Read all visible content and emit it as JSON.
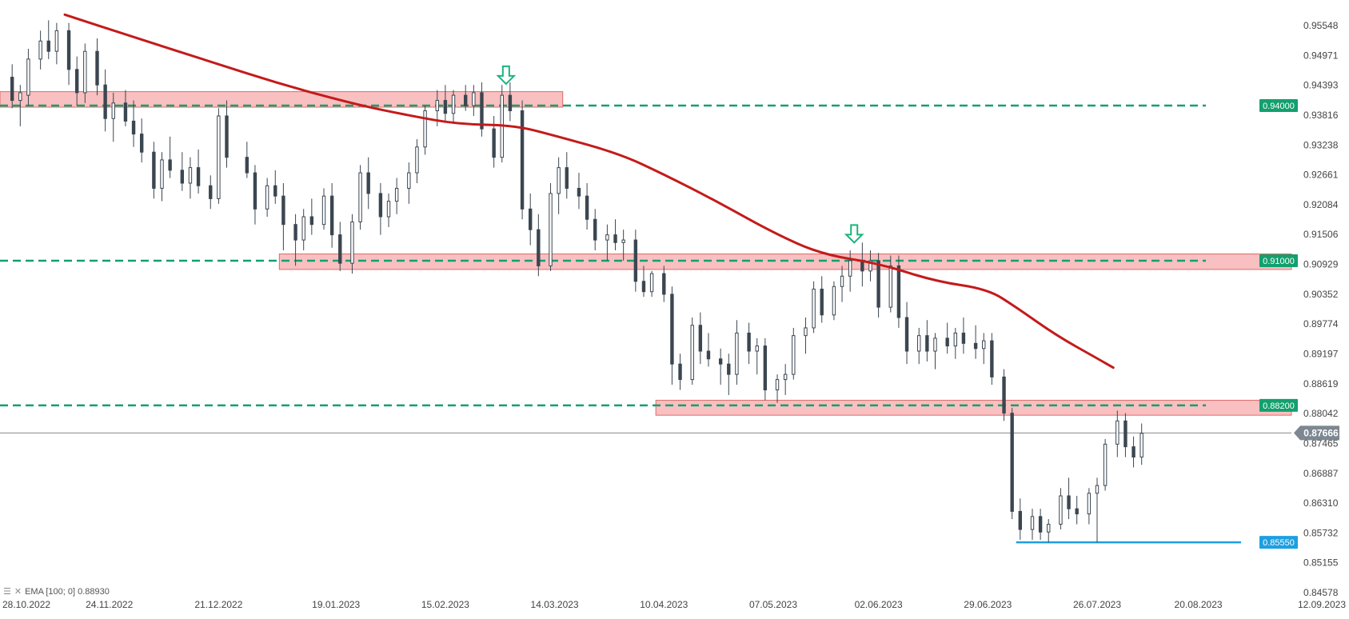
{
  "chart_data": {
    "type": "candlestick",
    "title": "",
    "xlabel": "",
    "ylabel": "",
    "x_ticks": [
      "28.10.2022",
      "24.11.2022",
      "21.12.2022",
      "19.01.2023",
      "15.02.2023",
      "14.03.2023",
      "10.04.2023",
      "07.05.2023",
      "02.06.2023",
      "29.06.2023",
      "26.07.2023",
      "20.08.2023",
      "12.09.2023"
    ],
    "y_ticks": [
      "0.95548",
      "0.94971",
      "0.94393",
      "0.93816",
      "0.93238",
      "0.92661",
      "0.92084",
      "0.91506",
      "0.90929",
      "0.90352",
      "0.89774",
      "0.89197",
      "0.88619",
      "0.88042",
      "0.87465",
      "0.86887",
      "0.86310",
      "0.85732",
      "0.85155",
      "0.84578"
    ],
    "ylim": [
      0.84578,
      0.95548
    ],
    "xlim": [
      "28.10.2022",
      "12.09.2023"
    ],
    "grid": false,
    "last_price": {
      "value": 0.87666,
      "label": "0.87666"
    },
    "levels": [
      {
        "value": 0.94,
        "label": "0.94000",
        "color": "#13a06e",
        "style": "dashed"
      },
      {
        "value": 0.91,
        "label": "0.91000",
        "color": "#13a06e",
        "style": "dashed"
      },
      {
        "value": 0.882,
        "label": "0.88200",
        "color": "#13a06e",
        "style": "dashed"
      },
      {
        "value": 0.8555,
        "label": "0.85550",
        "color": "#1e9fe0",
        "style": "solid",
        "from": "06.07.2023"
      }
    ],
    "zones": [
      {
        "from": "28.10.2022",
        "to": "16.03.2023",
        "low": 0.9397,
        "high": 0.9427
      },
      {
        "from": "05.01.2023",
        "to": "12.09.2023",
        "low": 0.9083,
        "high": 0.9113
      },
      {
        "from": "08.04.2023",
        "to": "12.09.2023",
        "low": 0.8801,
        "high": 0.883
      }
    ],
    "markers": [
      {
        "date": "02.03.2023",
        "price": 0.9442,
        "type": "down-arrow",
        "color": "#1db37e"
      },
      {
        "date": "27.05.2023",
        "price": 0.9135,
        "type": "down-arrow",
        "color": "#1db37e"
      }
    ],
    "ema": {
      "name": "EMA",
      "legend": "EMA [100; 0] 0.88930",
      "period": 100,
      "color": "#c41a1a",
      "points": [
        [
          "13.11.2022",
          0.9576
        ],
        [
          "01.12.2022",
          0.953
        ],
        [
          "19.12.2022",
          0.9485
        ],
        [
          "06.01.2023",
          0.944
        ],
        [
          "24.01.2023",
          0.9402
        ],
        [
          "06.02.2023",
          0.9381
        ],
        [
          "18.02.2023",
          0.9364
        ],
        [
          "04.03.2023",
          0.9362
        ],
        [
          "14.03.2023",
          0.9342
        ],
        [
          "30.03.2023",
          0.9307
        ],
        [
          "10.04.2023",
          0.9267
        ],
        [
          "23.04.2023",
          0.9215
        ],
        [
          "07.05.2023",
          0.9154
        ],
        [
          "19.05.2023",
          0.9112
        ],
        [
          "02.06.2023",
          0.9095
        ],
        [
          "16.06.2023",
          0.906
        ],
        [
          "29.06.2023",
          0.9045
        ],
        [
          "06.07.2023",
          0.901
        ],
        [
          "16.07.2023",
          0.8955
        ],
        [
          "26.07.2023",
          0.8911
        ],
        [
          "30.07.2023",
          0.8893
        ]
      ]
    },
    "candles": [
      [
        "31.10.2022",
        0.9455,
        0.948,
        0.9395,
        0.941
      ],
      [
        "02.11.2022",
        0.941,
        0.944,
        0.936,
        0.9425
      ],
      [
        "04.11.2022",
        0.942,
        0.951,
        0.94,
        0.949
      ],
      [
        "07.11.2022",
        0.949,
        0.9545,
        0.947,
        0.9525
      ],
      [
        "09.11.2022",
        0.9525,
        0.9565,
        0.949,
        0.9505
      ],
      [
        "11.11.2022",
        0.9505,
        0.956,
        0.948,
        0.9545
      ],
      [
        "14.11.2022",
        0.9545,
        0.956,
        0.944,
        0.947
      ],
      [
        "16.11.2022",
        0.947,
        0.9495,
        0.94,
        0.9425
      ],
      [
        "18.11.2022",
        0.9425,
        0.952,
        0.9405,
        0.9505
      ],
      [
        "21.11.2022",
        0.9505,
        0.953,
        0.942,
        0.944
      ],
      [
        "23.11.2022",
        0.944,
        0.947,
        0.935,
        0.9375
      ],
      [
        "25.11.2022",
        0.9375,
        0.9425,
        0.933,
        0.9405
      ],
      [
        "28.11.2022",
        0.9405,
        0.943,
        0.936,
        0.937
      ],
      [
        "30.11.2022",
        0.937,
        0.941,
        0.932,
        0.9345
      ],
      [
        "02.12.2022",
        0.9345,
        0.9375,
        0.929,
        0.931
      ],
      [
        "05.12.2022",
        0.931,
        0.933,
        0.922,
        0.924
      ],
      [
        "07.12.2022",
        0.924,
        0.931,
        0.9215,
        0.9295
      ],
      [
        "09.12.2022",
        0.9295,
        0.934,
        0.926,
        0.9275
      ],
      [
        "12.12.2022",
        0.9275,
        0.931,
        0.9235,
        0.925
      ],
      [
        "14.12.2022",
        0.925,
        0.93,
        0.922,
        0.928
      ],
      [
        "16.12.2022",
        0.928,
        0.9315,
        0.923,
        0.9245
      ],
      [
        "19.12.2022",
        0.9245,
        0.9265,
        0.92,
        0.922
      ],
      [
        "21.12.2022",
        0.922,
        0.9395,
        0.921,
        0.938
      ],
      [
        "23.12.2022",
        0.938,
        0.941,
        0.928,
        0.93
      ],
      [
        "28.12.2022",
        0.93,
        0.933,
        0.926,
        0.927
      ],
      [
        "30.12.2022",
        0.927,
        0.9285,
        0.917,
        0.92
      ],
      [
        "02.01.2023",
        0.92,
        0.926,
        0.9185,
        0.9245
      ],
      [
        "04.01.2023",
        0.9245,
        0.9275,
        0.921,
        0.9225
      ],
      [
        "06.01.2023",
        0.9225,
        0.925,
        0.912,
        0.917
      ],
      [
        "09.01.2023",
        0.917,
        0.919,
        0.909,
        0.914
      ],
      [
        "11.01.2023",
        0.914,
        0.92,
        0.912,
        0.9185
      ],
      [
        "13.01.2023",
        0.9185,
        0.922,
        0.915,
        0.917
      ],
      [
        "16.01.2023",
        0.917,
        0.924,
        0.916,
        0.9225
      ],
      [
        "18.01.2023",
        0.9225,
        0.925,
        0.9125,
        0.915
      ],
      [
        "20.01.2023",
        0.915,
        0.9175,
        0.908,
        0.9095
      ],
      [
        "23.01.2023",
        0.9095,
        0.919,
        0.9075,
        0.9175
      ],
      [
        "25.01.2023",
        0.9175,
        0.9285,
        0.916,
        0.927
      ],
      [
        "27.01.2023",
        0.927,
        0.93,
        0.92,
        0.923
      ],
      [
        "30.01.2023",
        0.923,
        0.925,
        0.915,
        0.9185
      ],
      [
        "01.02.2023",
        0.9185,
        0.923,
        0.9165,
        0.9215
      ],
      [
        "03.02.2023",
        0.9215,
        0.926,
        0.919,
        0.924
      ],
      [
        "06.02.2023",
        0.924,
        0.929,
        0.921,
        0.927
      ],
      [
        "08.02.2023",
        0.927,
        0.9335,
        0.925,
        0.932
      ],
      [
        "10.02.2023",
        0.932,
        0.94,
        0.9305,
        0.939
      ],
      [
        "13.02.2023",
        0.939,
        0.943,
        0.936,
        0.941
      ],
      [
        "15.02.2023",
        0.941,
        0.944,
        0.937,
        0.9385
      ],
      [
        "17.02.2023",
        0.9385,
        0.943,
        0.9365,
        0.942
      ],
      [
        "20.02.2023",
        0.942,
        0.944,
        0.939,
        0.94
      ],
      [
        "22.02.2023",
        0.94,
        0.944,
        0.938,
        0.9425
      ],
      [
        "24.02.2023",
        0.9425,
        0.9445,
        0.934,
        0.9355
      ],
      [
        "27.02.2023",
        0.9355,
        0.938,
        0.928,
        0.93
      ],
      [
        "01.03.2023",
        0.93,
        0.944,
        0.929,
        0.942
      ],
      [
        "03.03.2023",
        0.942,
        0.9445,
        0.937,
        0.939
      ],
      [
        "06.03.2023",
        0.939,
        0.941,
        0.918,
        0.92
      ],
      [
        "08.03.2023",
        0.92,
        0.923,
        0.913,
        0.916
      ],
      [
        "10.03.2023",
        0.916,
        0.919,
        0.907,
        0.909
      ],
      [
        "13.03.2023",
        0.909,
        0.925,
        0.908,
        0.923
      ],
      [
        "15.03.2023",
        0.923,
        0.93,
        0.919,
        0.928
      ],
      [
        "17.03.2023",
        0.928,
        0.931,
        0.922,
        0.924
      ],
      [
        "20.03.2023",
        0.924,
        0.927,
        0.92,
        0.9225
      ],
      [
        "22.03.2023",
        0.9225,
        0.925,
        0.916,
        0.918
      ],
      [
        "24.03.2023",
        0.918,
        0.92,
        0.912,
        0.914
      ],
      [
        "27.03.2023",
        0.914,
        0.917,
        0.91,
        0.915
      ],
      [
        "29.03.2023",
        0.915,
        0.918,
        0.912,
        0.9135
      ],
      [
        "31.03.2023",
        0.9135,
        0.916,
        0.91,
        0.914
      ],
      [
        "03.04.2023",
        0.914,
        0.916,
        0.904,
        0.906
      ],
      [
        "05.04.2023",
        0.906,
        0.909,
        0.903,
        0.904
      ],
      [
        "07.04.2023",
        0.904,
        0.908,
        0.903,
        0.9075
      ],
      [
        "10.04.2023",
        0.9075,
        0.909,
        0.902,
        0.9035
      ],
      [
        "12.04.2023",
        0.9035,
        0.905,
        0.886,
        0.89
      ],
      [
        "14.04.2023",
        0.89,
        0.892,
        0.885,
        0.887
      ],
      [
        "17.04.2023",
        0.887,
        0.899,
        0.886,
        0.8975
      ],
      [
        "19.04.2023",
        0.8975,
        0.9,
        0.89,
        0.8925
      ],
      [
        "21.04.2023",
        0.8925,
        0.896,
        0.8895,
        0.891
      ],
      [
        "24.04.2023",
        0.891,
        0.893,
        0.886,
        0.89
      ],
      [
        "26.04.2023",
        0.89,
        0.892,
        0.884,
        0.888
      ],
      [
        "28.04.2023",
        0.888,
        0.8985,
        0.886,
        0.896
      ],
      [
        "01.05.2023",
        0.896,
        0.898,
        0.89,
        0.8925
      ],
      [
        "03.05.2023",
        0.8925,
        0.895,
        0.888,
        0.8935
      ],
      [
        "05.05.2023",
        0.8935,
        0.895,
        0.883,
        0.885
      ],
      [
        "08.05.2023",
        0.885,
        0.888,
        0.8825,
        0.887
      ],
      [
        "10.05.2023",
        0.887,
        0.89,
        0.884,
        0.888
      ],
      [
        "12.05.2023",
        0.888,
        0.897,
        0.887,
        0.8955
      ],
      [
        "15.05.2023",
        0.8955,
        0.899,
        0.892,
        0.897
      ],
      [
        "17.05.2023",
        0.897,
        0.906,
        0.896,
        0.9045
      ],
      [
        "19.05.2023",
        0.9045,
        0.907,
        0.898,
        0.8995
      ],
      [
        "22.05.2023",
        0.8995,
        0.906,
        0.8985,
        0.905
      ],
      [
        "24.05.2023",
        0.905,
        0.909,
        0.902,
        0.907
      ],
      [
        "26.05.2023",
        0.907,
        0.912,
        0.904,
        0.91
      ],
      [
        "29.05.2023",
        0.91,
        0.9135,
        0.905,
        0.908
      ],
      [
        "31.05.2023",
        0.908,
        0.912,
        0.906,
        0.91
      ],
      [
        "02.06.2023",
        0.91,
        0.9115,
        0.899,
        0.901
      ],
      [
        "05.06.2023",
        0.901,
        0.911,
        0.9,
        0.909
      ],
      [
        "07.06.2023",
        0.909,
        0.911,
        0.897,
        0.899
      ],
      [
        "09.06.2023",
        0.899,
        0.902,
        0.89,
        0.8925
      ],
      [
        "12.06.2023",
        0.8925,
        0.897,
        0.89,
        0.8955
      ],
      [
        "14.06.2023",
        0.8955,
        0.8985,
        0.8905,
        0.8925
      ],
      [
        "16.06.2023",
        0.8925,
        0.896,
        0.889,
        0.895
      ],
      [
        "19.06.2023",
        0.895,
        0.898,
        0.892,
        0.8935
      ],
      [
        "21.06.2023",
        0.8935,
        0.897,
        0.891,
        0.896
      ],
      [
        "23.06.2023",
        0.896,
        0.899,
        0.892,
        0.894
      ],
      [
        "26.06.2023",
        0.894,
        0.8975,
        0.891,
        0.893
      ],
      [
        "28.06.2023",
        0.893,
        0.896,
        0.89,
        0.8945
      ],
      [
        "30.06.2023",
        0.8945,
        0.896,
        0.886,
        0.8875
      ],
      [
        "03.07.2023",
        0.8875,
        0.889,
        0.879,
        0.8805
      ],
      [
        "05.07.2023",
        0.8805,
        0.8815,
        0.86,
        0.8615
      ],
      [
        "07.07.2023",
        0.8615,
        0.864,
        0.856,
        0.858
      ],
      [
        "10.07.2023",
        0.858,
        0.862,
        0.856,
        0.8605
      ],
      [
        "12.07.2023",
        0.8605,
        0.862,
        0.856,
        0.8575
      ],
      [
        "14.07.2023",
        0.8575,
        0.86,
        0.8555,
        0.859
      ],
      [
        "17.07.2023",
        0.859,
        0.866,
        0.858,
        0.8645
      ],
      [
        "19.07.2023",
        0.8645,
        0.868,
        0.86,
        0.862
      ],
      [
        "21.07.2023",
        0.862,
        0.8645,
        0.859,
        0.861
      ],
      [
        "24.07.2023",
        0.861,
        0.866,
        0.859,
        0.865
      ],
      [
        "26.07.2023",
        0.865,
        0.868,
        0.8555,
        0.8665
      ],
      [
        "28.07.2023",
        0.8665,
        0.8755,
        0.8655,
        0.8745
      ],
      [
        "31.07.2023",
        0.8745,
        0.881,
        0.872,
        0.879
      ],
      [
        "02.08.2023",
        0.879,
        0.8805,
        0.872,
        0.874
      ],
      [
        "04.08.2023",
        0.874,
        0.876,
        0.87,
        0.872
      ],
      [
        "06.08.2023",
        0.872,
        0.8785,
        0.8705,
        0.8766
      ]
    ]
  }
}
